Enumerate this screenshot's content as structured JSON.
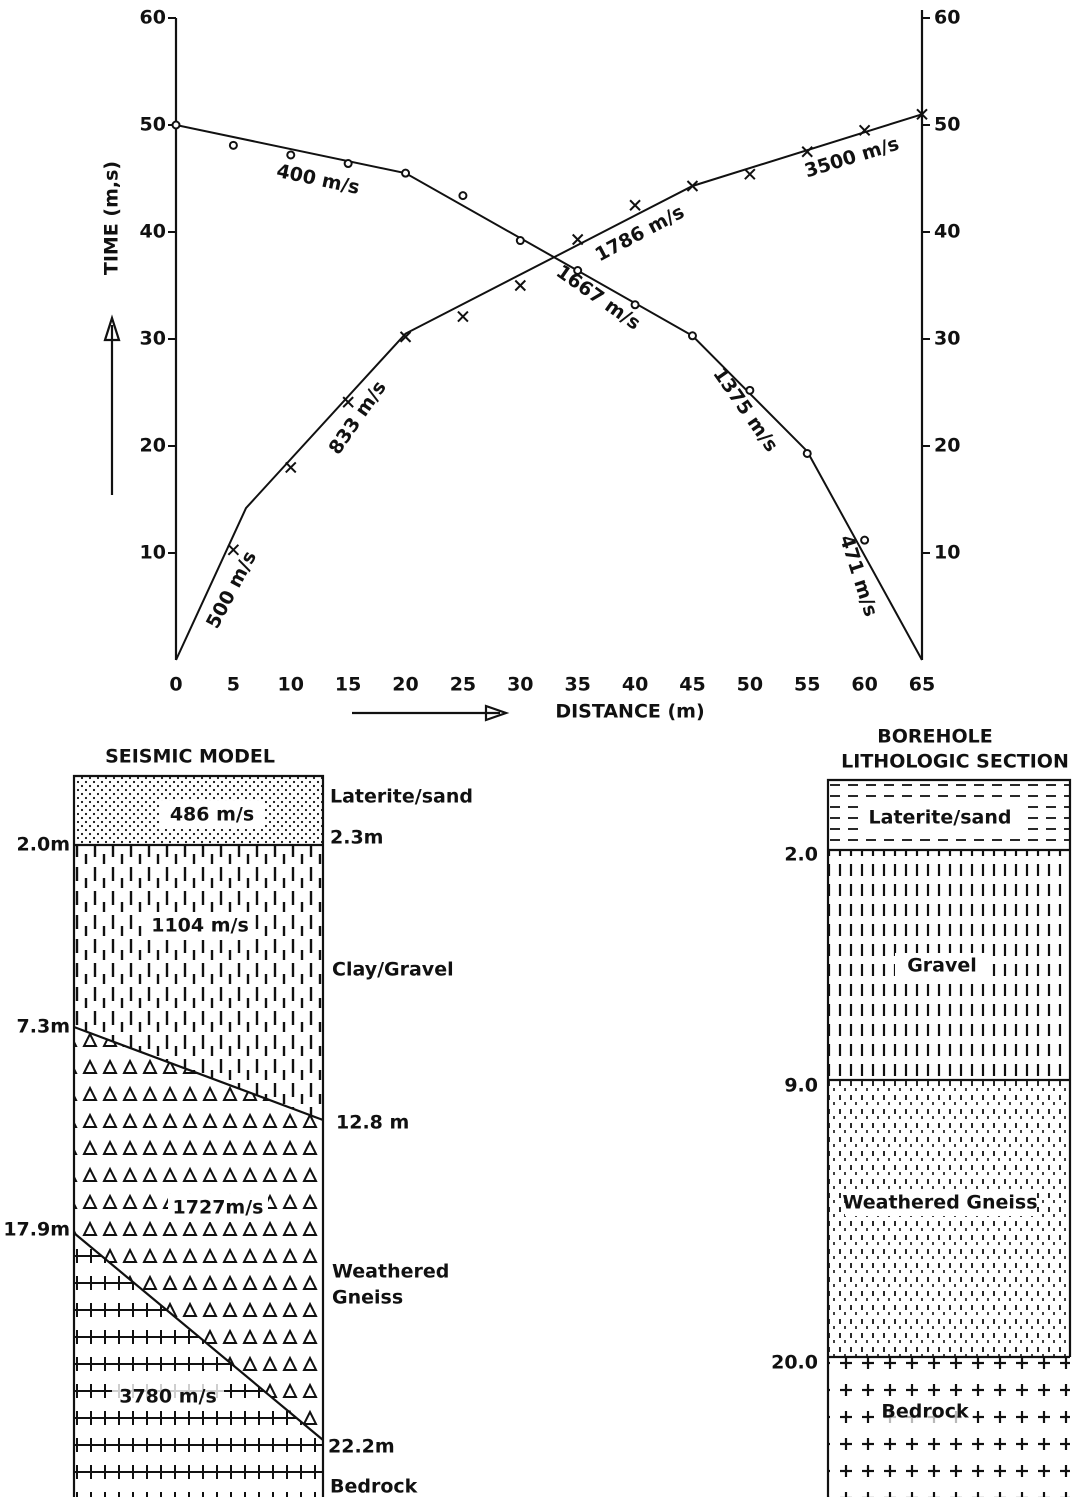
{
  "chart_data": {
    "type": "line",
    "ylabel": "TIME (m,s)",
    "xlabel": "DISTANCE (m)",
    "xlim": [
      0,
      65
    ],
    "xticks": [
      0,
      5,
      10,
      15,
      20,
      25,
      30,
      35,
      40,
      45,
      50,
      55,
      60,
      65
    ],
    "ylim": [
      0,
      60
    ],
    "yticks": [
      10,
      20,
      30,
      40,
      50,
      60
    ],
    "y2lim": [
      0,
      60
    ],
    "y2ticks": [
      10,
      20,
      30,
      40,
      50,
      60
    ],
    "series": [
      {
        "marker": "x",
        "color": "#111111",
        "x": [
          5,
          10,
          15,
          20,
          25,
          30,
          35,
          40,
          45,
          50,
          55,
          60,
          65
        ],
        "values": [
          10.3,
          18,
          24.1,
          30.2,
          32.1,
          35,
          39.3,
          42.5,
          44.3,
          45.4,
          47.5,
          49.5,
          51
        ]
      },
      {
        "marker": "o",
        "color": "#111111",
        "x": [
          0,
          5,
          10,
          15,
          20,
          25,
          30,
          35,
          40,
          45,
          50,
          55,
          60
        ],
        "values": [
          50,
          48.1,
          47.2,
          46.4,
          45.5,
          43.4,
          39.2,
          36.4,
          33.2,
          30.3,
          25.2,
          19.3,
          11.2
        ]
      }
    ],
    "lines": [
      {
        "x": [
          0,
          6.1,
          20,
          45,
          65
        ],
        "values": [
          0,
          14.2,
          30.5,
          44.3,
          51
        ]
      },
      {
        "x": [
          0,
          20,
          34,
          45,
          55,
          65
        ],
        "values": [
          50,
          45.5,
          37,
          30.3,
          19.5,
          0
        ]
      }
    ],
    "annotations": [
      "400 m/s",
      "500 m/s",
      "833 m/s",
      "1786 m/s",
      "3500 m/s",
      "1667 m/s",
      "1375 m/s",
      "471 m/s"
    ]
  },
  "seismic_model": {
    "title": "SEISMIC MODEL",
    "layers": [
      {
        "velocity": "486 m/s",
        "material": [
          "Laterite/sand"
        ]
      },
      {
        "velocity": "1104 m/s",
        "material": [
          "Clay/Gravel"
        ]
      },
      {
        "velocity": "1727m/s",
        "material": [
          "Weathered",
          "Gneiss"
        ]
      },
      {
        "velocity": "3780 m/s",
        "material": [
          "Bedrock"
        ]
      }
    ],
    "depths_left": [
      "2.0m",
      "7.3m",
      "17.9m"
    ],
    "depths_right": [
      "2.3m",
      "12.8 m",
      "22.2m"
    ]
  },
  "borehole": {
    "title": [
      "BOREHOLE",
      "LITHOLOGIC SECTION"
    ],
    "layers": [
      "Laterite/sand",
      "Gravel",
      "Weathered Gneiss",
      "Bedrock"
    ],
    "depths": [
      "2.0",
      "9.0",
      "20.0"
    ]
  }
}
